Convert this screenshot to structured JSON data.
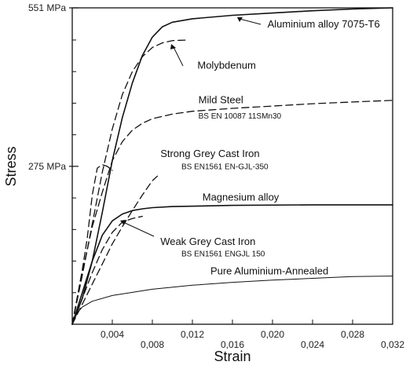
{
  "chart_data": {
    "type": "line",
    "title": "",
    "xlabel": "Strain",
    "ylabel": "Stress",
    "xlim": [
      0,
      0.032
    ],
    "ylim": [
      0,
      551
    ],
    "grid": false,
    "x_ticks": [
      {
        "value": 0.004,
        "label": "0,004",
        "row": "upper"
      },
      {
        "value": 0.008,
        "label": "0,008",
        "row": "lower"
      },
      {
        "value": 0.012,
        "label": "0,012",
        "row": "upper"
      },
      {
        "value": 0.016,
        "label": "0,016",
        "row": "lower"
      },
      {
        "value": 0.02,
        "label": "0,020",
        "row": "upper"
      },
      {
        "value": 0.024,
        "label": "0,024",
        "row": "lower"
      },
      {
        "value": 0.028,
        "label": "0,028",
        "row": "upper"
      },
      {
        "value": 0.032,
        "label": "0,032",
        "row": "lower"
      }
    ],
    "y_ticks": [
      {
        "value": 551,
        "label": "551 MPa"
      },
      {
        "value": 275,
        "label": "275 MPa"
      }
    ],
    "y_minor_ticks": [
      0,
      55,
      110,
      165,
      220,
      330,
      385,
      440,
      495
    ],
    "series": [
      {
        "name": "Aluminium alloy 7075-T6",
        "style": "solid",
        "width": 1.6,
        "points": [
          [
            0,
            0
          ],
          [
            0.001,
            45
          ],
          [
            0.002,
            110
          ],
          [
            0.003,
            195
          ],
          [
            0.004,
            285
          ],
          [
            0.005,
            360
          ],
          [
            0.006,
            420
          ],
          [
            0.007,
            468
          ],
          [
            0.008,
            500
          ],
          [
            0.009,
            518
          ],
          [
            0.01,
            526
          ],
          [
            0.012,
            532
          ],
          [
            0.016,
            538
          ],
          [
            0.02,
            542
          ],
          [
            0.024,
            546
          ],
          [
            0.028,
            549
          ],
          [
            0.032,
            551
          ]
        ]
      },
      {
        "name": "Molybdenum",
        "style": "dashed",
        "width": 1.3,
        "points": [
          [
            0,
            0
          ],
          [
            0.001,
            85
          ],
          [
            0.002,
            175
          ],
          [
            0.003,
            265
          ],
          [
            0.004,
            340
          ],
          [
            0.005,
            400
          ],
          [
            0.006,
            440
          ],
          [
            0.007,
            466
          ],
          [
            0.008,
            482
          ],
          [
            0.009,
            490
          ],
          [
            0.01,
            494
          ],
          [
            0.0115,
            495
          ]
        ]
      },
      {
        "name": "Mild Steel",
        "style": "dashed",
        "width": 1.3,
        "points": [
          [
            0,
            0
          ],
          [
            0.001,
            90
          ],
          [
            0.002,
            170
          ],
          [
            0.003,
            230
          ],
          [
            0.004,
            285
          ],
          [
            0.005,
            318
          ],
          [
            0.006,
            338
          ],
          [
            0.007,
            350
          ],
          [
            0.008,
            358
          ],
          [
            0.01,
            366
          ],
          [
            0.012,
            371
          ],
          [
            0.016,
            376
          ],
          [
            0.02,
            380
          ],
          [
            0.024,
            384
          ],
          [
            0.028,
            387
          ],
          [
            0.032,
            390
          ]
        ]
      },
      {
        "name": "Strong Grey Cast Iron",
        "style": "dashed",
        "width": 1.3,
        "points": [
          [
            0,
            0
          ],
          [
            0.001,
            95
          ],
          [
            0.0015,
            150
          ],
          [
            0.002,
            225
          ],
          [
            0.0025,
            272
          ],
          [
            0.003,
            278
          ],
          [
            0.0035,
            275
          ],
          [
            0.004,
            268
          ]
        ]
      },
      {
        "name": "Strong Grey Cast Iron (curve 2)",
        "style": "dashed",
        "width": 1.3,
        "points": [
          [
            0,
            0
          ],
          [
            0.001,
            35
          ],
          [
            0.002,
            70
          ],
          [
            0.003,
            105
          ],
          [
            0.004,
            140
          ],
          [
            0.005,
            170
          ],
          [
            0.006,
            198
          ],
          [
            0.007,
            225
          ],
          [
            0.008,
            250
          ],
          [
            0.0085,
            258
          ]
        ]
      },
      {
        "name": "Magnesium alloy",
        "style": "solid",
        "width": 1.6,
        "points": [
          [
            0,
            0
          ],
          [
            0.001,
            55
          ],
          [
            0.002,
            110
          ],
          [
            0.003,
            155
          ],
          [
            0.004,
            180
          ],
          [
            0.005,
            192
          ],
          [
            0.006,
            198
          ],
          [
            0.007,
            201
          ],
          [
            0.008,
            203
          ],
          [
            0.01,
            205
          ],
          [
            0.016,
            207
          ],
          [
            0.024,
            208
          ],
          [
            0.032,
            208
          ]
        ]
      },
      {
        "name": "Weak Grey Cast Iron",
        "style": "dashed",
        "width": 1.3,
        "points": [
          [
            0,
            0
          ],
          [
            0.001,
            45
          ],
          [
            0.002,
            90
          ],
          [
            0.003,
            130
          ],
          [
            0.004,
            160
          ],
          [
            0.005,
            178
          ],
          [
            0.006,
            184
          ],
          [
            0.007,
            188
          ]
        ]
      },
      {
        "name": "Pure Aluminium-Annealed",
        "style": "solid",
        "width": 1.0,
        "points": [
          [
            0,
            0
          ],
          [
            0.0005,
            20
          ],
          [
            0.001,
            30
          ],
          [
            0.002,
            40
          ],
          [
            0.004,
            50
          ],
          [
            0.008,
            61
          ],
          [
            0.012,
            68
          ],
          [
            0.016,
            73
          ],
          [
            0.02,
            77
          ],
          [
            0.024,
            80
          ],
          [
            0.028,
            83
          ],
          [
            0.032,
            84
          ]
        ]
      }
    ],
    "annotations": [
      {
        "text": "Aluminium alloy 7075-T6",
        "size": "main",
        "x": 0.0195,
        "y": 517
      },
      {
        "text": "Molybdenum",
        "size": "main",
        "x": 0.0125,
        "y": 445
      },
      {
        "text": "Mild Steel",
        "size": "main",
        "x": 0.0126,
        "y": 385
      },
      {
        "text": "BS EN 10087 11SMn30",
        "size": "sub",
        "x": 0.0126,
        "y": 358
      },
      {
        "text": "Strong Grey Cast Iron",
        "size": "main",
        "x": 0.0088,
        "y": 291
      },
      {
        "text": "BS EN1561 EN-GJL-350",
        "size": "sub",
        "x": 0.0109,
        "y": 270
      },
      {
        "text": "Magnesium alloy",
        "size": "main",
        "x": 0.013,
        "y": 215
      },
      {
        "text": "Weak Grey Cast Iron",
        "size": "main",
        "x": 0.0088,
        "y": 138
      },
      {
        "text": "BS EN1561 ENGJL 150",
        "size": "sub",
        "x": 0.0109,
        "y": 118
      },
      {
        "text": "Pure Aluminium-Annealed",
        "size": "main",
        "x": 0.0138,
        "y": 87
      }
    ]
  }
}
